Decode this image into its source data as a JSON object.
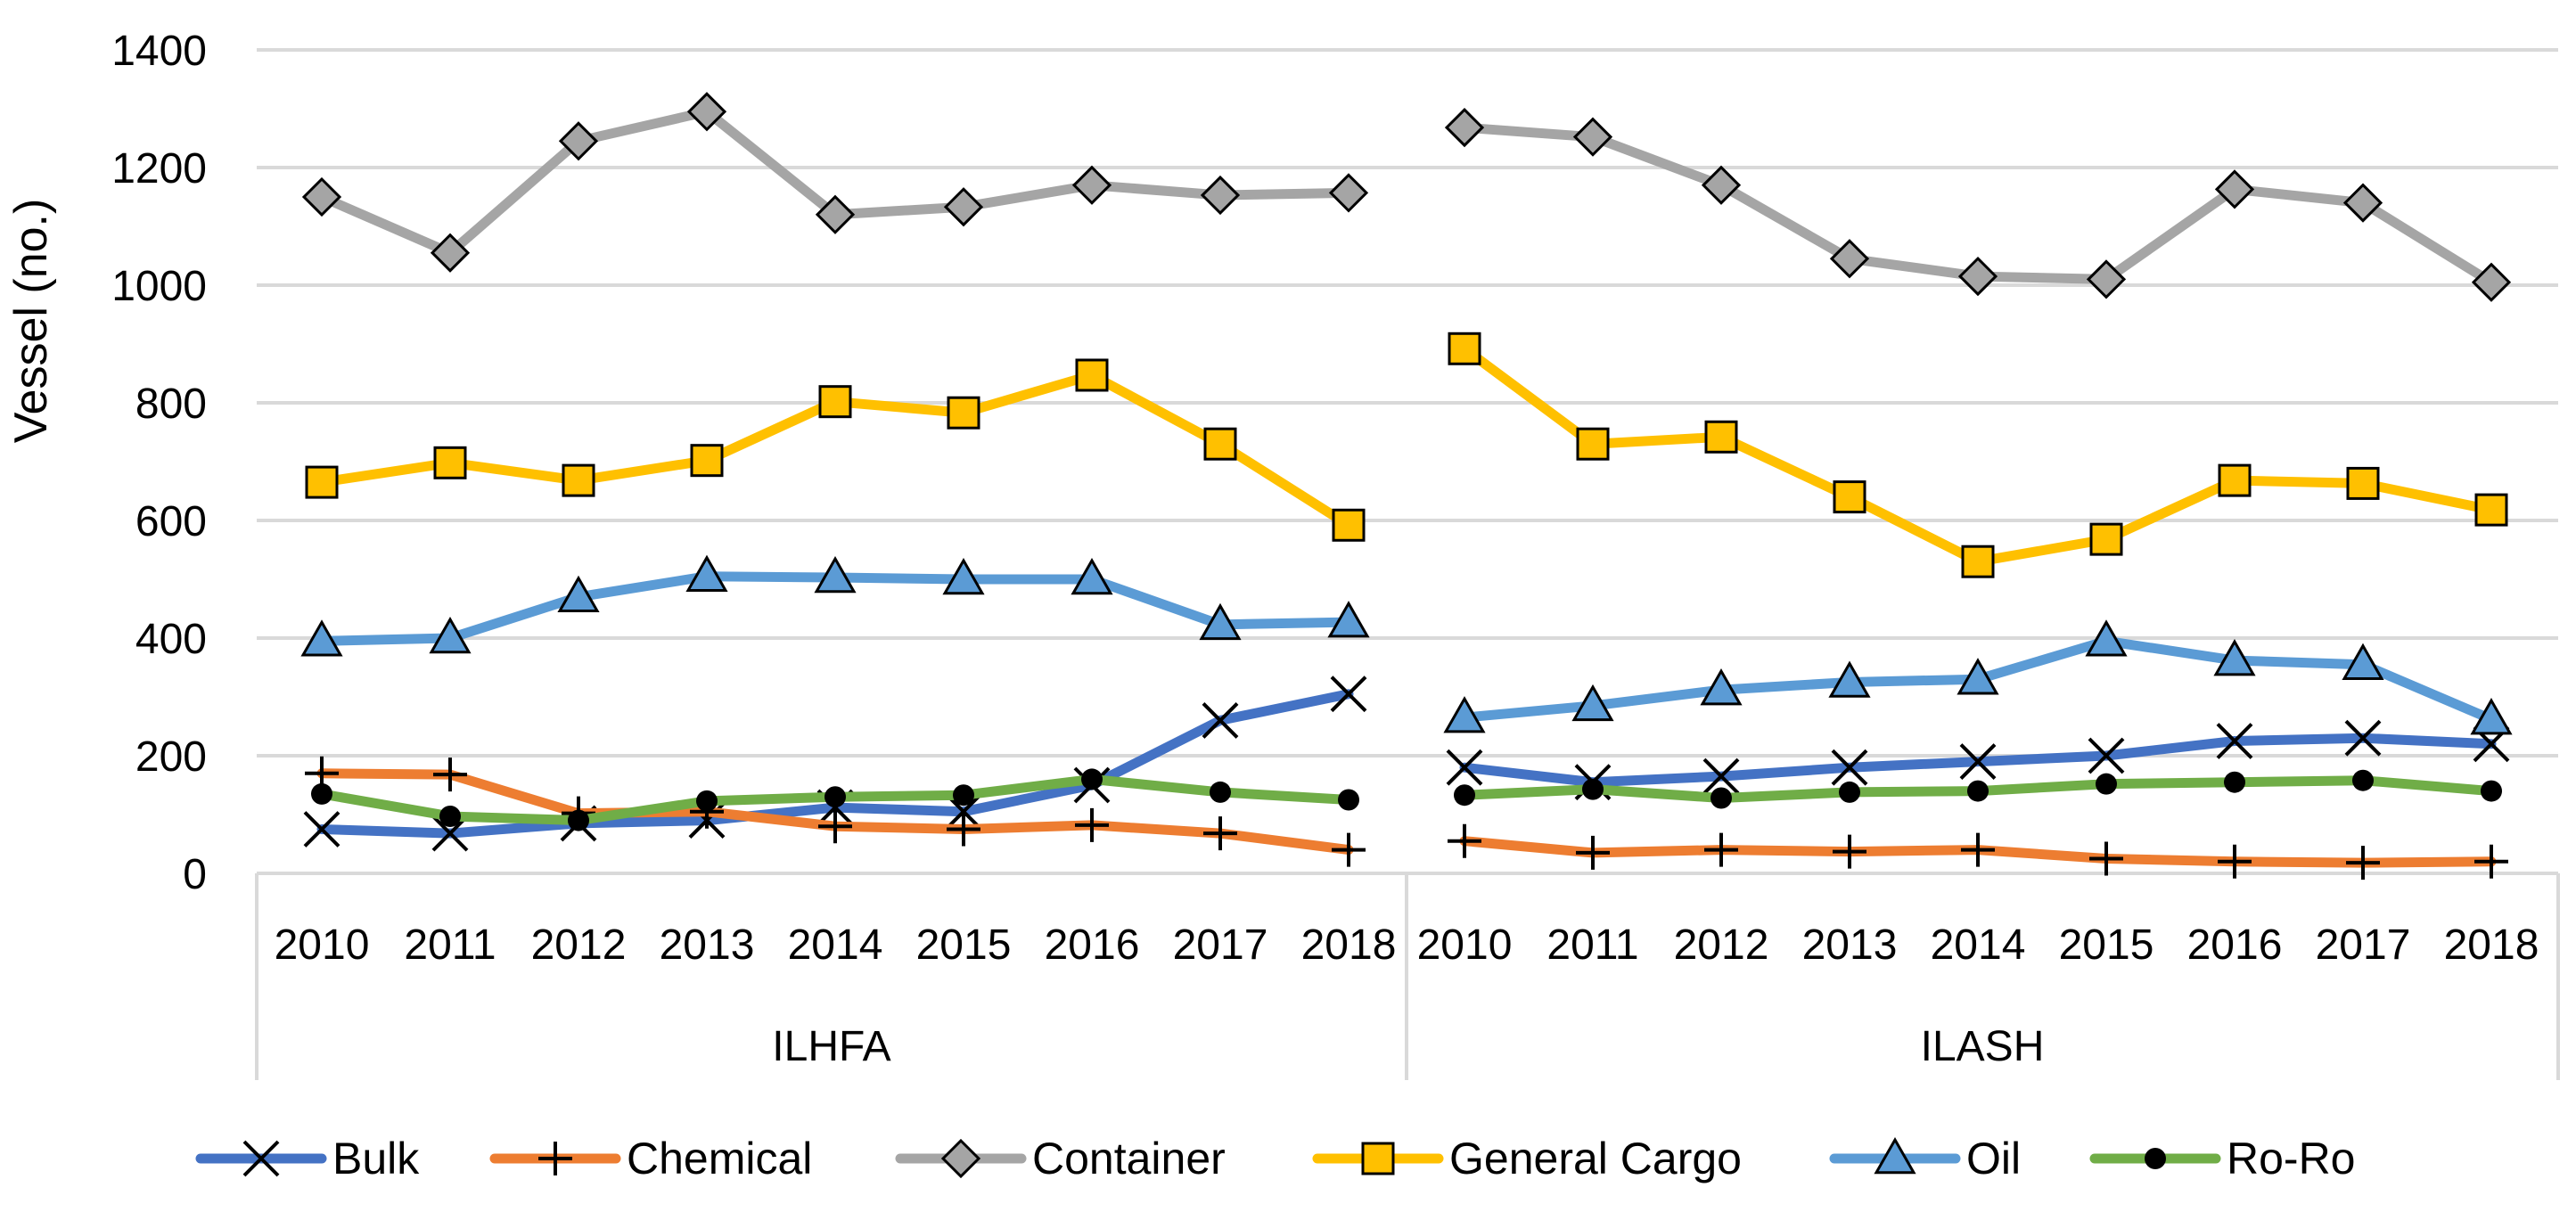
{
  "chart_data": {
    "type": "line",
    "title": "",
    "xlabel": "",
    "ylabel": "Vessel (no.)",
    "ylim": [
      0,
      1400
    ],
    "yticks": [
      "0",
      "200",
      "400",
      "600",
      "800",
      "1000",
      "1200",
      "1400"
    ],
    "grid": true,
    "legend_position": "bottom",
    "groups": [
      {
        "name": "ILHFA",
        "categories": [
          "2010",
          "2011",
          "2012",
          "2013",
          "2014",
          "2015",
          "2016",
          "2017",
          "2018"
        ]
      },
      {
        "name": "ILASH",
        "categories": [
          "2010",
          "2011",
          "2012",
          "2013",
          "2014",
          "2015",
          "2016",
          "2017",
          "2018"
        ]
      }
    ],
    "series": [
      {
        "name": "Bulk",
        "color": "#4472C4",
        "marker": "x",
        "values": [
          [
            75,
            68,
            85,
            90,
            112,
            105,
            150,
            260,
            305
          ],
          [
            180,
            155,
            165,
            180,
            190,
            200,
            225,
            230,
            220
          ]
        ]
      },
      {
        "name": "Chemical",
        "color": "#ED7D31",
        "marker": "plus",
        "values": [
          [
            170,
            168,
            102,
            105,
            80,
            75,
            82,
            68,
            40
          ],
          [
            55,
            35,
            40,
            37,
            40,
            25,
            20,
            18,
            20
          ]
        ]
      },
      {
        "name": "Container",
        "color": "#A5A5A5",
        "marker": "diamond",
        "values": [
          [
            1150,
            1055,
            1245,
            1295,
            1120,
            1133,
            1170,
            1153,
            1157
          ],
          [
            1268,
            1252,
            1170,
            1045,
            1015,
            1010,
            1163,
            1140,
            1005
          ]
        ]
      },
      {
        "name": "General Cargo",
        "color": "#FFC000",
        "marker": "square",
        "values": [
          [
            665,
            698,
            668,
            702,
            802,
            783,
            847,
            730,
            592
          ],
          [
            892,
            730,
            742,
            640,
            530,
            568,
            668,
            663,
            618
          ]
        ]
      },
      {
        "name": "Oil",
        "color": "#5B9BD5",
        "marker": "triangle",
        "values": [
          [
            395,
            400,
            470,
            505,
            503,
            500,
            500,
            423,
            427
          ],
          [
            265,
            285,
            312,
            325,
            330,
            395,
            362,
            355,
            262
          ]
        ]
      },
      {
        "name": "Ro-Ro",
        "color": "#70AD47",
        "marker": "circle",
        "values": [
          [
            135,
            97,
            90,
            123,
            130,
            133,
            160,
            138,
            125
          ],
          [
            133,
            143,
            128,
            138,
            140,
            152,
            155,
            158,
            140
          ]
        ]
      }
    ]
  }
}
